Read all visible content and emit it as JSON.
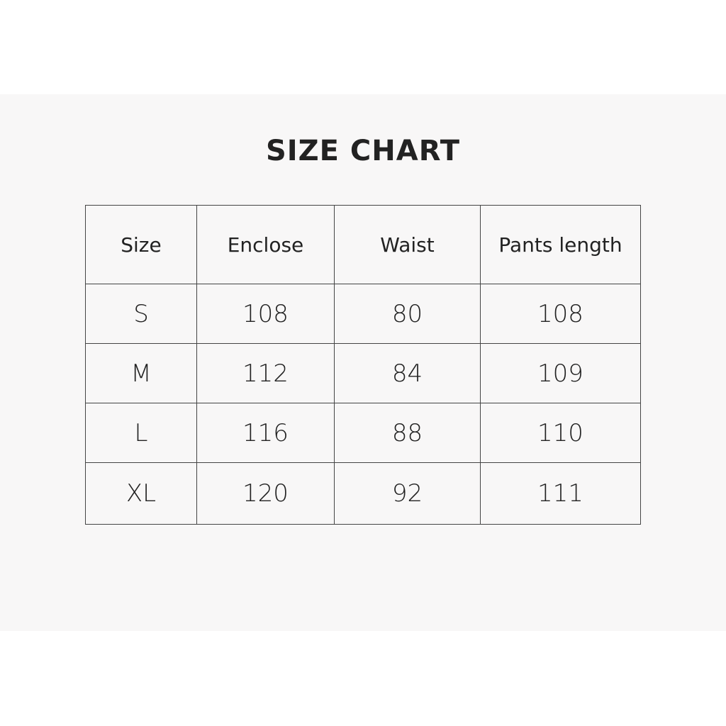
{
  "title": "SIZE CHART",
  "table": {
    "headers": [
      "Size",
      "Enclose",
      "Waist",
      "Pants length"
    ],
    "rows": [
      [
        "S",
        "108",
        "80",
        "108"
      ],
      [
        "M",
        "112",
        "84",
        "109"
      ],
      [
        "L",
        "116",
        "88",
        "110"
      ],
      [
        "XL",
        "120",
        "92",
        "111"
      ]
    ]
  }
}
